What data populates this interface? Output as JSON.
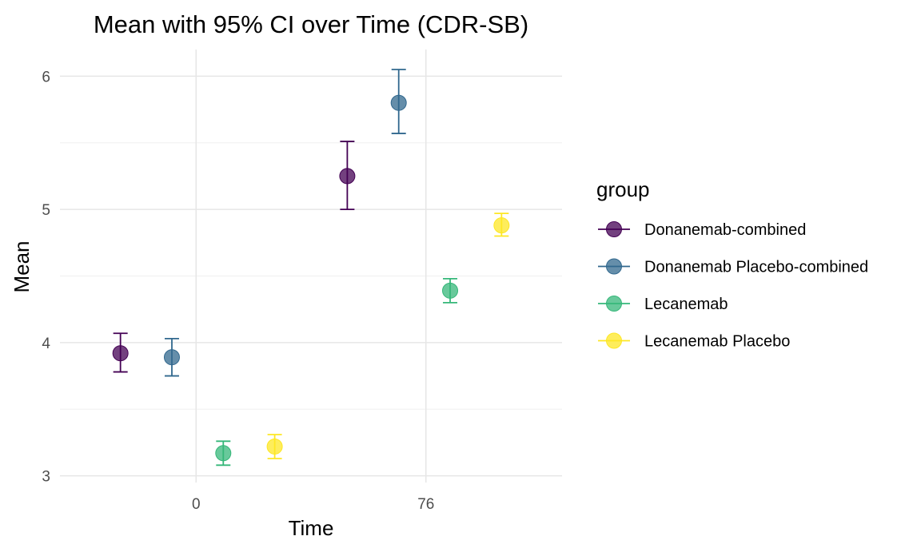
{
  "chart_data": {
    "type": "scatter",
    "title": "Mean with 95% CI over Time (CDR-SB)",
    "xlabel": "Time",
    "ylabel": "Mean",
    "x_ticks": [
      0,
      76
    ],
    "x_tick_labels": [
      "0",
      "76"
    ],
    "y_ticks": [
      3,
      4,
      5,
      6
    ],
    "y_tick_labels": [
      "3",
      "4",
      "5",
      "6"
    ],
    "xlim": [
      -45,
      121
    ],
    "ylim": [
      2.95,
      6.2
    ],
    "grid": true,
    "legend": {
      "title": "group",
      "position": "right"
    },
    "series": [
      {
        "name": "Donanemab-combined",
        "color": "#440154",
        "points": [
          {
            "x": -25,
            "y": 3.92,
            "lo": 3.78,
            "hi": 4.07
          },
          {
            "x": 50,
            "y": 5.25,
            "lo": 5.0,
            "hi": 5.51
          }
        ]
      },
      {
        "name": "Donanemab Placebo-combined",
        "color": "#31688E",
        "points": [
          {
            "x": -8,
            "y": 3.89,
            "lo": 3.75,
            "hi": 4.03
          },
          {
            "x": 67,
            "y": 5.8,
            "lo": 5.57,
            "hi": 6.05
          }
        ]
      },
      {
        "name": "Lecanemab",
        "color": "#35B779",
        "points": [
          {
            "x": 9,
            "y": 3.17,
            "lo": 3.08,
            "hi": 3.26
          },
          {
            "x": 84,
            "y": 4.39,
            "lo": 4.3,
            "hi": 4.48
          }
        ]
      },
      {
        "name": "Lecanemab Placebo",
        "color": "#FDE725",
        "points": [
          {
            "x": 26,
            "y": 3.22,
            "lo": 3.13,
            "hi": 3.31
          },
          {
            "x": 101,
            "y": 4.88,
            "lo": 4.8,
            "hi": 4.97
          }
        ]
      }
    ]
  }
}
